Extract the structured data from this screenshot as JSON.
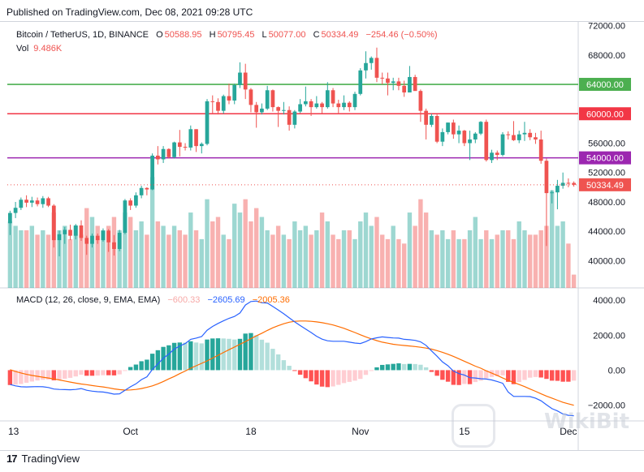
{
  "header": {
    "published": "Published on TradingView.com, Dec 08, 2021 09:28 UTC"
  },
  "legend": {
    "symbol": "Bitcoin / TetherUS, 1D, BINANCE",
    "o_label": "O",
    "o": "50588.95",
    "h_label": "H",
    "h": "50795.45",
    "l_label": "L",
    "l": "50077.00",
    "c_label": "C",
    "c": "50334.49",
    "change": "−254.46 (−0.50%)",
    "vol_label": "Vol",
    "vol": "9.486K"
  },
  "macd_legend": {
    "label": "MACD (12, 26, close, 9, EMA, EMA)",
    "hist": "−600.33",
    "macd": "−2605.69",
    "signal": "−2005.36"
  },
  "footer": {
    "brand": "TradingView"
  },
  "watermark": {
    "text": "WikiBit"
  },
  "colors": {
    "up": "#26a69a",
    "down": "#ef5350",
    "green_line": "#4caf50",
    "red_line": "#f23645",
    "purple_line": "#9c27b0",
    "macd": "#2962ff",
    "signal": "#ff6d00"
  },
  "chart_data": {
    "type": "candlestick",
    "x_ticks": [
      "13",
      "Oct",
      "18",
      "Nov",
      "15",
      "Dec"
    ],
    "price_ticks": [
      "72000.00",
      "68000.00",
      "64000.00",
      "60000.00",
      "56000.00",
      "54000.00",
      "52000.00",
      "48000.00",
      "44000.00",
      "40000.00"
    ],
    "price_ylim": [
      36300,
      72500
    ],
    "horizontal_levels": [
      {
        "value": 64000,
        "label": "64000.00",
        "color": "#4caf50"
      },
      {
        "value": 60000,
        "label": "60000.00",
        "color": "#f23645"
      },
      {
        "value": 54000,
        "label": "54000.00",
        "color": "#9c27b0"
      }
    ],
    "last_price": {
      "value": 50334.49,
      "label": "50334.49"
    },
    "candles": [
      [
        45100,
        46800,
        43500,
        46500
      ],
      [
        46500,
        48000,
        45800,
        47200
      ],
      [
        47200,
        48600,
        46900,
        48300
      ],
      [
        48300,
        48900,
        47300,
        47900
      ],
      [
        47900,
        48700,
        47300,
        48200
      ],
      [
        48200,
        48600,
        47400,
        47700
      ],
      [
        47700,
        48800,
        47200,
        48500
      ],
      [
        48500,
        48700,
        47300,
        47500
      ],
      [
        47500,
        47700,
        41800,
        42800
      ],
      [
        42800,
        44100,
        40600,
        43600
      ],
      [
        43600,
        44600,
        42300,
        44200
      ],
      [
        44200,
        44900,
        42800,
        43400
      ],
      [
        43400,
        45000,
        42900,
        44800
      ],
      [
        44800,
        45500,
        42700,
        43100
      ],
      [
        43100,
        43400,
        40800,
        42300
      ],
      [
        42300,
        43700,
        41800,
        43400
      ],
      [
        43400,
        43700,
        42300,
        42800
      ],
      [
        42800,
        44400,
        42600,
        44100
      ],
      [
        44100,
        44300,
        41200,
        42500
      ],
      [
        42500,
        43500,
        40700,
        41600
      ],
      [
        41600,
        44200,
        41300,
        43800
      ],
      [
        43800,
        48400,
        43600,
        48200
      ],
      [
        48200,
        48500,
        46900,
        47500
      ],
      [
        47500,
        49300,
        47200,
        48900
      ],
      [
        48900,
        50200,
        48500,
        49900
      ],
      [
        49900,
        50000,
        48900,
        49700
      ],
      [
        49700,
        54600,
        49600,
        54300
      ],
      [
        54300,
        55600,
        53100,
        53800
      ],
      [
        53800,
        55600,
        53300,
        55200
      ],
      [
        55200,
        55300,
        53900,
        54100
      ],
      [
        54100,
        56200,
        53900,
        56100
      ],
      [
        56100,
        57800,
        54200,
        55500
      ],
      [
        55500,
        56000,
        55000,
        55400
      ],
      [
        55400,
        58400,
        55000,
        57900
      ],
      [
        57900,
        57900,
        54800,
        55600
      ],
      [
        55600,
        56100,
        54600,
        55900
      ],
      [
        55900,
        62000,
        55700,
        61700
      ],
      [
        61700,
        62500,
        60100,
        61600
      ],
      [
        61600,
        62100,
        59900,
        60400
      ],
      [
        60400,
        62600,
        60000,
        62400
      ],
      [
        62400,
        64100,
        61300,
        61800
      ],
      [
        61800,
        64100,
        61300,
        63900
      ],
      [
        63900,
        67000,
        63500,
        65600
      ],
      [
        65600,
        66800,
        62000,
        63300
      ],
      [
        63300,
        63500,
        60200,
        61200
      ],
      [
        61200,
        61600,
        58100,
        60200
      ],
      [
        60200,
        61400,
        59900,
        60700
      ],
      [
        60700,
        63800,
        60500,
        63200
      ],
      [
        63200,
        63300,
        60300,
        60900
      ],
      [
        60900,
        61000,
        58200,
        60400
      ],
      [
        60400,
        61600,
        59900,
        60500
      ],
      [
        60500,
        61000,
        57700,
        58500
      ],
      [
        58500,
        60500,
        58000,
        60300
      ],
      [
        60300,
        62000,
        60100,
        61300
      ],
      [
        61300,
        63700,
        61000,
        61700
      ],
      [
        61700,
        62000,
        59700,
        60900
      ],
      [
        60900,
        62400,
        60700,
        61400
      ],
      [
        61400,
        61600,
        60000,
        60900
      ],
      [
        60900,
        64300,
        60700,
        63200
      ],
      [
        63200,
        63500,
        60900,
        61400
      ],
      [
        61400,
        61900,
        60100,
        60900
      ],
      [
        60900,
        62500,
        60500,
        61500
      ],
      [
        61500,
        61700,
        60300,
        60900
      ],
      [
        60900,
        63000,
        60500,
        62700
      ],
      [
        62700,
        66200,
        62500,
        65900
      ],
      [
        65900,
        68500,
        64800,
        66900
      ],
      [
        66900,
        67800,
        66000,
        67600
      ],
      [
        67600,
        69000,
        64300,
        64900
      ],
      [
        64900,
        65600,
        64000,
        64800
      ],
      [
        64800,
        65600,
        62500,
        64200
      ],
      [
        64200,
        64900,
        63200,
        64400
      ],
      [
        64400,
        64900,
        63200,
        63800
      ],
      [
        63800,
        64500,
        62300,
        62900
      ],
      [
        62900,
        66500,
        62900,
        65000
      ],
      [
        65000,
        65300,
        63200,
        63100
      ],
      [
        63100,
        63300,
        58900,
        60400
      ],
      [
        60400,
        60700,
        56500,
        58500
      ],
      [
        58500,
        60000,
        58200,
        59700
      ],
      [
        59700,
        59900,
        56000,
        56200
      ],
      [
        56200,
        58000,
        55600,
        57500
      ],
      [
        57500,
        58800,
        57200,
        58800
      ],
      [
        58800,
        59200,
        56600,
        57200
      ],
      [
        57200,
        58400,
        56000,
        57700
      ],
      [
        57700,
        57800,
        55600,
        56000
      ],
      [
        56000,
        57700,
        53700,
        56500
      ],
      [
        56500,
        57500,
        56000,
        57300
      ],
      [
        57300,
        59000,
        57100,
        58900
      ],
      [
        58900,
        59200,
        53500,
        53700
      ],
      [
        53700,
        55100,
        53300,
        54700
      ],
      [
        54700,
        55000,
        53700,
        54400
      ],
      [
        54400,
        57500,
        54200,
        57200
      ],
      [
        57200,
        57600,
        56500,
        57100
      ],
      [
        57100,
        59000,
        56300,
        56400
      ],
      [
        56400,
        57700,
        56000,
        57200
      ],
      [
        57200,
        58900,
        56300,
        57400
      ],
      [
        57400,
        57900,
        56400,
        56800
      ],
      [
        56800,
        57400,
        55900,
        56500
      ],
      [
        56500,
        57700,
        53200,
        53600
      ],
      [
        53600,
        53900,
        42000,
        49200
      ],
      [
        49200,
        49600,
        47800,
        49300
      ],
      [
        49300,
        51000,
        47000,
        50200
      ],
      [
        50200,
        52000,
        49800,
        50600
      ],
      [
        50600,
        51200,
        50000,
        50588
      ],
      [
        50588,
        50795,
        50077,
        50334
      ]
    ],
    "volume": [
      15,
      14,
      13,
      13,
      14,
      12,
      13,
      12,
      17,
      13,
      14,
      11,
      14,
      12,
      18,
      16,
      14,
      13,
      14,
      16,
      13,
      17,
      16,
      13,
      15,
      12,
      25,
      15,
      14,
      12,
      14,
      13,
      12,
      17,
      13,
      11,
      20,
      15,
      16,
      12,
      11,
      19,
      17,
      20,
      15,
      18,
      16,
      13,
      12,
      14,
      12,
      11,
      15,
      13,
      14,
      12,
      13,
      17,
      15,
      12,
      11,
      13,
      13,
      11,
      15,
      17,
      14,
      16,
      12,
      11,
      14,
      11,
      10,
      17,
      14,
      20,
      17,
      13,
      12,
      13,
      11,
      13,
      11,
      11,
      13,
      16,
      11,
      13,
      11,
      12,
      13,
      13,
      11,
      15,
      13,
      12,
      12,
      13,
      14,
      22,
      14,
      15,
      10,
      3
    ],
    "volume_ylim": [
      0,
      60
    ],
    "macd_ticks": [
      "4000.00",
      "2000.00",
      "0.00",
      "−2000.00"
    ],
    "macd_ylim": [
      -2900,
      4700
    ],
    "macd": [
      -820,
      -900,
      -950,
      -960,
      -950,
      -940,
      -950,
      -990,
      -1080,
      -1100,
      -1110,
      -1120,
      -1100,
      -1050,
      -1150,
      -1200,
      -1230,
      -1250,
      -1300,
      -1370,
      -1350,
      -1150,
      -950,
      -780,
      -540,
      -380,
      40,
      360,
      680,
      920,
      1200,
      1380,
      1520,
      1760,
      1830,
      1920,
      2280,
      2500,
      2670,
      2820,
      2960,
      3070,
      3270,
      3720,
      3920,
      3950,
      3850,
      3840,
      3640,
      3440,
      3220,
      2990,
      2760,
      2550,
      2350,
      2150,
      1940,
      1770,
      1680,
      1650,
      1650,
      1650,
      1600,
      1550,
      1520,
      1630,
      1780,
      1850,
      1900,
      1870,
      1840,
      1830,
      1760,
      1740,
      1700,
      1620,
      1420,
      1100,
      800,
      470,
      250,
      -50,
      -200,
      -280,
      -430,
      -450,
      -490,
      -510,
      -560,
      -650,
      -750,
      -1250,
      -1500,
      -1500,
      -1500,
      -1510,
      -1600,
      -1750,
      -1980,
      -2200,
      -2330,
      -2500,
      -2580,
      -2605
    ],
    "signal": [
      30,
      -80,
      -160,
      -240,
      -300,
      -350,
      -400,
      -450,
      -500,
      -560,
      -620,
      -680,
      -740,
      -790,
      -830,
      -880,
      -920,
      -960,
      -1010,
      -1070,
      -1110,
      -1140,
      -1130,
      -1100,
      -1050,
      -980,
      -900,
      -780,
      -650,
      -500,
      -360,
      -200,
      -50,
      110,
      250,
      390,
      530,
      690,
      850,
      1010,
      1170,
      1320,
      1480,
      1630,
      1800,
      1960,
      2110,
      2270,
      2420,
      2540,
      2650,
      2740,
      2790,
      2810,
      2810,
      2790,
      2760,
      2710,
      2650,
      2580,
      2490,
      2390,
      2270,
      2150,
      2020,
      1900,
      1790,
      1690,
      1600,
      1540,
      1480,
      1440,
      1410,
      1380,
      1350,
      1310,
      1260,
      1200,
      1120,
      1020,
      910,
      790,
      650,
      510,
      370,
      230,
      110,
      -40,
      -170,
      -300,
      -450,
      -580,
      -700,
      -820,
      -940,
      -1080,
      -1210,
      -1350,
      -1480,
      -1600,
      -1720,
      -1840,
      -1920,
      -2005
    ],
    "histogram": [
      -850,
      -820,
      -790,
      -720,
      -650,
      -590,
      -550,
      -540,
      -580,
      -540,
      -490,
      -440,
      -360,
      -260,
      -320,
      -320,
      -310,
      -290,
      -290,
      -300,
      -240,
      -10,
      180,
      320,
      510,
      600,
      940,
      1140,
      1330,
      1420,
      1560,
      1580,
      1570,
      1650,
      1580,
      1530,
      1750,
      1810,
      1820,
      1810,
      1790,
      1750,
      1790,
      2090,
      2120,
      1990,
      1740,
      1570,
      1220,
      900,
      570,
      250,
      -30,
      -260,
      -460,
      -640,
      -820,
      -940,
      -970,
      -930,
      -840,
      -740,
      -670,
      -600,
      -500,
      -270,
      -10,
      160,
      300,
      330,
      360,
      390,
      350,
      360,
      350,
      310,
      160,
      -100,
      -320,
      -550,
      -660,
      -840,
      -850,
      -790,
      -800,
      -680,
      -600,
      -470,
      -390,
      -350,
      -300,
      -670,
      -800,
      -680,
      -560,
      -430,
      -390,
      -420,
      -500,
      -600,
      -610,
      -660,
      -660,
      -600
    ]
  }
}
